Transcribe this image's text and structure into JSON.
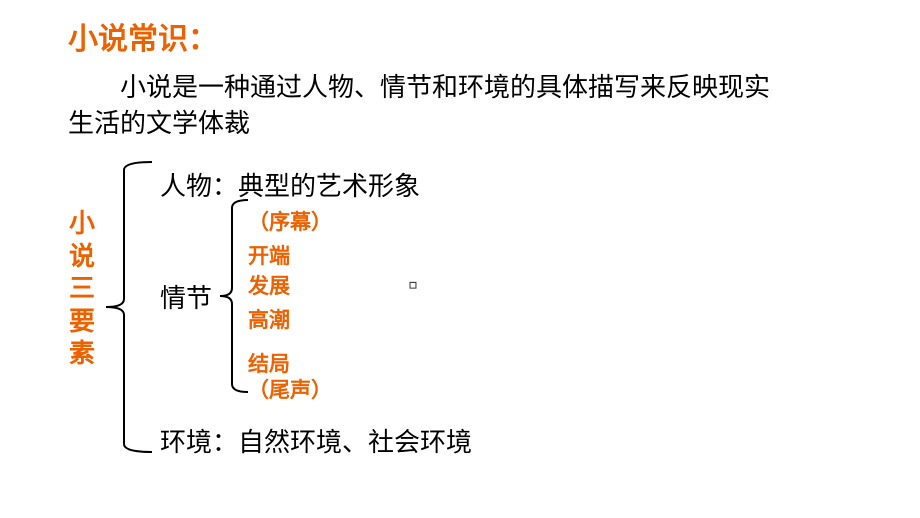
{
  "title": "小说常识：",
  "definition": "小说是一种通过人物、情节和环境的具体描写来反映现实生活的文学体裁",
  "main_label": "小说三要素",
  "elements": {
    "character": "人物：典型的艺术形象",
    "plot_label": "情节",
    "environment": "环境：自然环境、社会环境"
  },
  "plot_stages": [
    "（序幕）",
    "开端",
    "发展",
    "高潮",
    "结局",
    "（尾声）"
  ],
  "cursor_glyph": "▫",
  "colors": {
    "accent": "#ec6100",
    "text": "#000000",
    "background": "#ffffff",
    "brace": "#000000"
  },
  "big_brace": {
    "total_height": 294,
    "half": 147,
    "depth": 28,
    "tip": 18,
    "stroke_width": 2
  },
  "small_brace": {
    "total_height": 196,
    "half": 98,
    "depth": 16,
    "tip": 12,
    "stroke_width": 2
  }
}
